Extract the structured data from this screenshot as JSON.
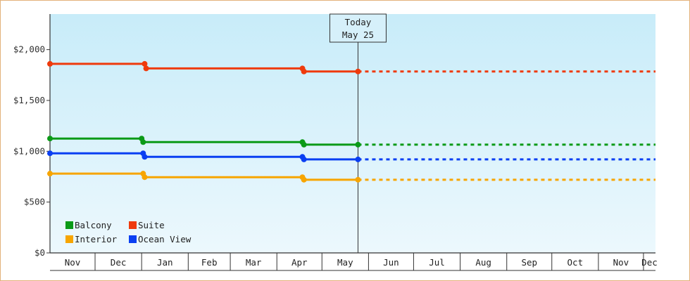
{
  "chart_data": {
    "type": "line",
    "title": "",
    "xlabel": "",
    "ylabel": "",
    "ylim": [
      0,
      2350
    ],
    "yticks": [
      {
        "value": 0,
        "label": "$0"
      },
      {
        "value": 500,
        "label": "$500"
      },
      {
        "value": 1000,
        "label": "$1,000"
      },
      {
        "value": 1500,
        "label": "$1,500"
      },
      {
        "value": 2000,
        "label": "$2,000"
      }
    ],
    "xlim": [
      "2022-11-01",
      "2023-12-09"
    ],
    "x_months": [
      {
        "start": "2022-11-01",
        "label": "Nov"
      },
      {
        "start": "2022-12-01",
        "label": "Dec"
      },
      {
        "start": "2023-01-01",
        "label": "Jan"
      },
      {
        "start": "2023-02-01",
        "label": "Feb"
      },
      {
        "start": "2023-03-01",
        "label": "Mar"
      },
      {
        "start": "2023-04-01",
        "label": "Apr"
      },
      {
        "start": "2023-05-01",
        "label": "May"
      },
      {
        "start": "2023-06-01",
        "label": "Jun"
      },
      {
        "start": "2023-07-01",
        "label": "Jul"
      },
      {
        "start": "2023-08-01",
        "label": "Aug"
      },
      {
        "start": "2023-09-01",
        "label": "Sep"
      },
      {
        "start": "2023-10-01",
        "label": "Oct"
      },
      {
        "start": "2023-11-01",
        "label": "Nov"
      },
      {
        "start": "2023-12-01",
        "label": "Dec"
      }
    ],
    "today": {
      "date": "2023-05-25",
      "label_line1": "Today",
      "label_line2": "May 25"
    },
    "projection_end": "2023-12-09",
    "background_gradient": [
      "#c8ecf9",
      "#ecf8fd"
    ],
    "legend": {
      "placement": "bottom-left",
      "columns": 2
    },
    "series": [
      {
        "name": "Balcony",
        "color": "#0b9a17",
        "points": [
          {
            "date": "2022-11-01",
            "value": 1125
          },
          {
            "date": "2023-01-01",
            "value": 1125
          },
          {
            "date": "2023-01-02",
            "value": 1090
          },
          {
            "date": "2023-04-18",
            "value": 1090
          },
          {
            "date": "2023-04-19",
            "value": 1065
          },
          {
            "date": "2023-05-25",
            "value": 1065
          }
        ]
      },
      {
        "name": "Suite",
        "color": "#ef3a0c",
        "points": [
          {
            "date": "2022-11-01",
            "value": 1860
          },
          {
            "date": "2023-01-03",
            "value": 1860
          },
          {
            "date": "2023-01-04",
            "value": 1815
          },
          {
            "date": "2023-04-18",
            "value": 1815
          },
          {
            "date": "2023-04-19",
            "value": 1785
          },
          {
            "date": "2023-05-25",
            "value": 1785
          }
        ]
      },
      {
        "name": "Interior",
        "color": "#f7a500",
        "points": [
          {
            "date": "2022-11-01",
            "value": 780
          },
          {
            "date": "2023-01-02",
            "value": 780
          },
          {
            "date": "2023-01-03",
            "value": 745
          },
          {
            "date": "2023-04-18",
            "value": 745
          },
          {
            "date": "2023-04-19",
            "value": 720
          },
          {
            "date": "2023-05-25",
            "value": 720
          }
        ]
      },
      {
        "name": "Ocean View",
        "color": "#0a3ff2",
        "points": [
          {
            "date": "2022-11-01",
            "value": 980
          },
          {
            "date": "2023-01-02",
            "value": 980
          },
          {
            "date": "2023-01-03",
            "value": 945
          },
          {
            "date": "2023-04-18",
            "value": 945
          },
          {
            "date": "2023-04-19",
            "value": 920
          },
          {
            "date": "2023-05-25",
            "value": 920
          }
        ]
      }
    ]
  }
}
